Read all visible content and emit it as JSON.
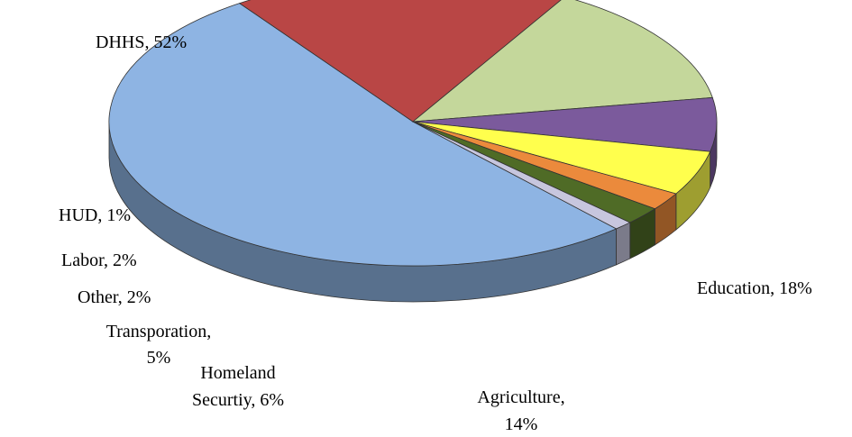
{
  "chart_data": {
    "type": "pie",
    "title": "",
    "series": [
      {
        "name": "DHHS",
        "value": 52,
        "label": [
          "DHHS, 52%"
        ],
        "color": "#8EB4E3"
      },
      {
        "name": "Education",
        "value": 18,
        "label": [
          "Education, 18%"
        ],
        "color": "#B94645"
      },
      {
        "name": "Agriculture",
        "value": 14,
        "label": [
          "Agriculture,",
          "14%"
        ],
        "color": "#C4D79B"
      },
      {
        "name": "Homeland Securtiy",
        "value": 6,
        "label": [
          "Homeland",
          "Securtiy, 6%"
        ],
        "color": "#7B5A9C"
      },
      {
        "name": "Transporation",
        "value": 5,
        "label": [
          "Transporation,",
          "5%"
        ],
        "color": "#FFFF4D"
      },
      {
        "name": "Other",
        "value": 2,
        "label": [
          "Other, 2%"
        ],
        "color": "#EB8A3C"
      },
      {
        "name": "Labor",
        "value": 2,
        "label": [
          "Labor, 2%"
        ],
        "color": "#4F6B26"
      },
      {
        "name": "HUD",
        "value": 1,
        "label": [
          "HUD, 1%"
        ],
        "color": "#C7C6DE"
      }
    ]
  }
}
